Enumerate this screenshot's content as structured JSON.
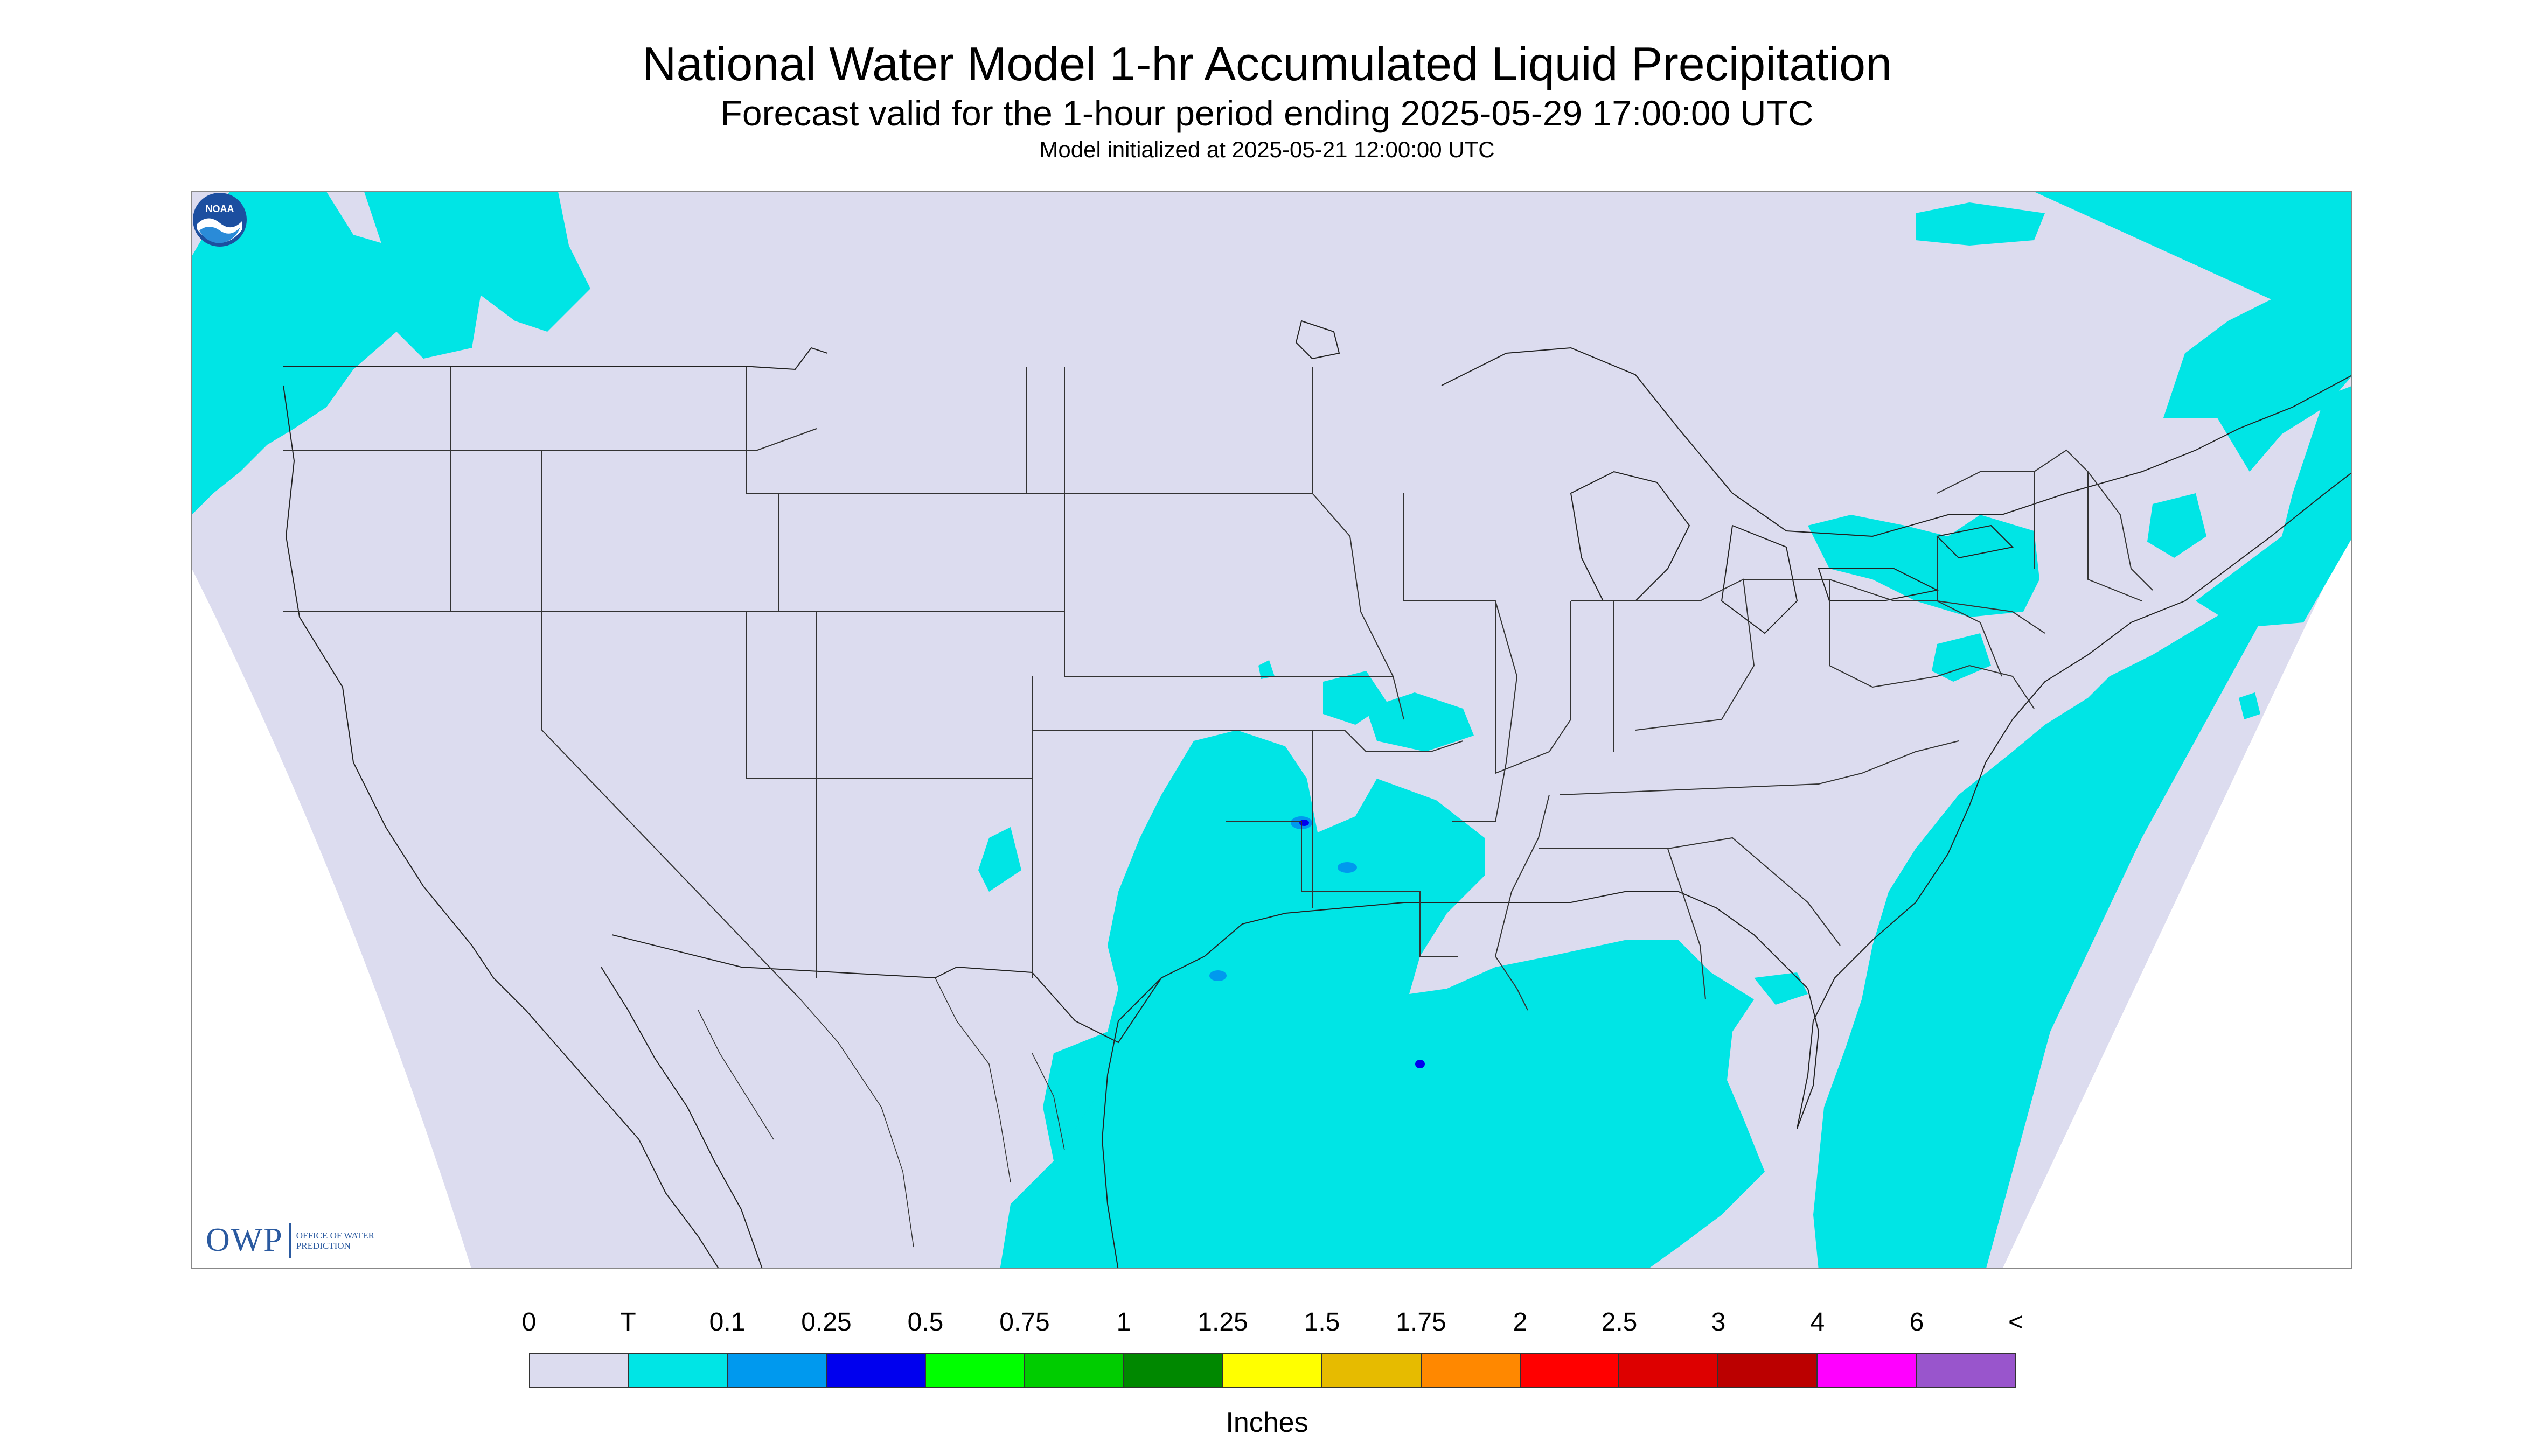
{
  "title": "National Water Model 1-hr Accumulated Liquid Precipitation",
  "subtitle": "Forecast valid for the 1-hour period ending 2025-05-29 17:00:00 UTC",
  "init_line": "Model initialized at 2025-05-21 12:00:00 UTC",
  "logo": {
    "owp_mark": "OWP",
    "owp_text": "OFFICE OF WATER PREDICTION",
    "noaa_text": "NOAA"
  },
  "colors": {
    "background_domain": "#dcdcef",
    "trace": "#00e5e5",
    "light_blue": "#0099ee",
    "blue": "#0000ee",
    "border_lines": "#222222"
  },
  "legend": {
    "units": "Inches",
    "labels": [
      "0",
      "T",
      "0.1",
      "0.25",
      "0.5",
      "0.75",
      "1",
      "1.25",
      "1.5",
      "1.75",
      "2",
      "2.5",
      "3",
      "4",
      "6",
      "<"
    ],
    "colors": [
      "#dcdcef",
      "#00e5e5",
      "#0099ee",
      "#0000ee",
      "#00ff00",
      "#00cc00",
      "#008800",
      "#ffff00",
      "#e6bb00",
      "#ff8800",
      "#ff0000",
      "#dd0000",
      "#bb0000",
      "#ff00ff",
      "#9955cc"
    ]
  }
}
